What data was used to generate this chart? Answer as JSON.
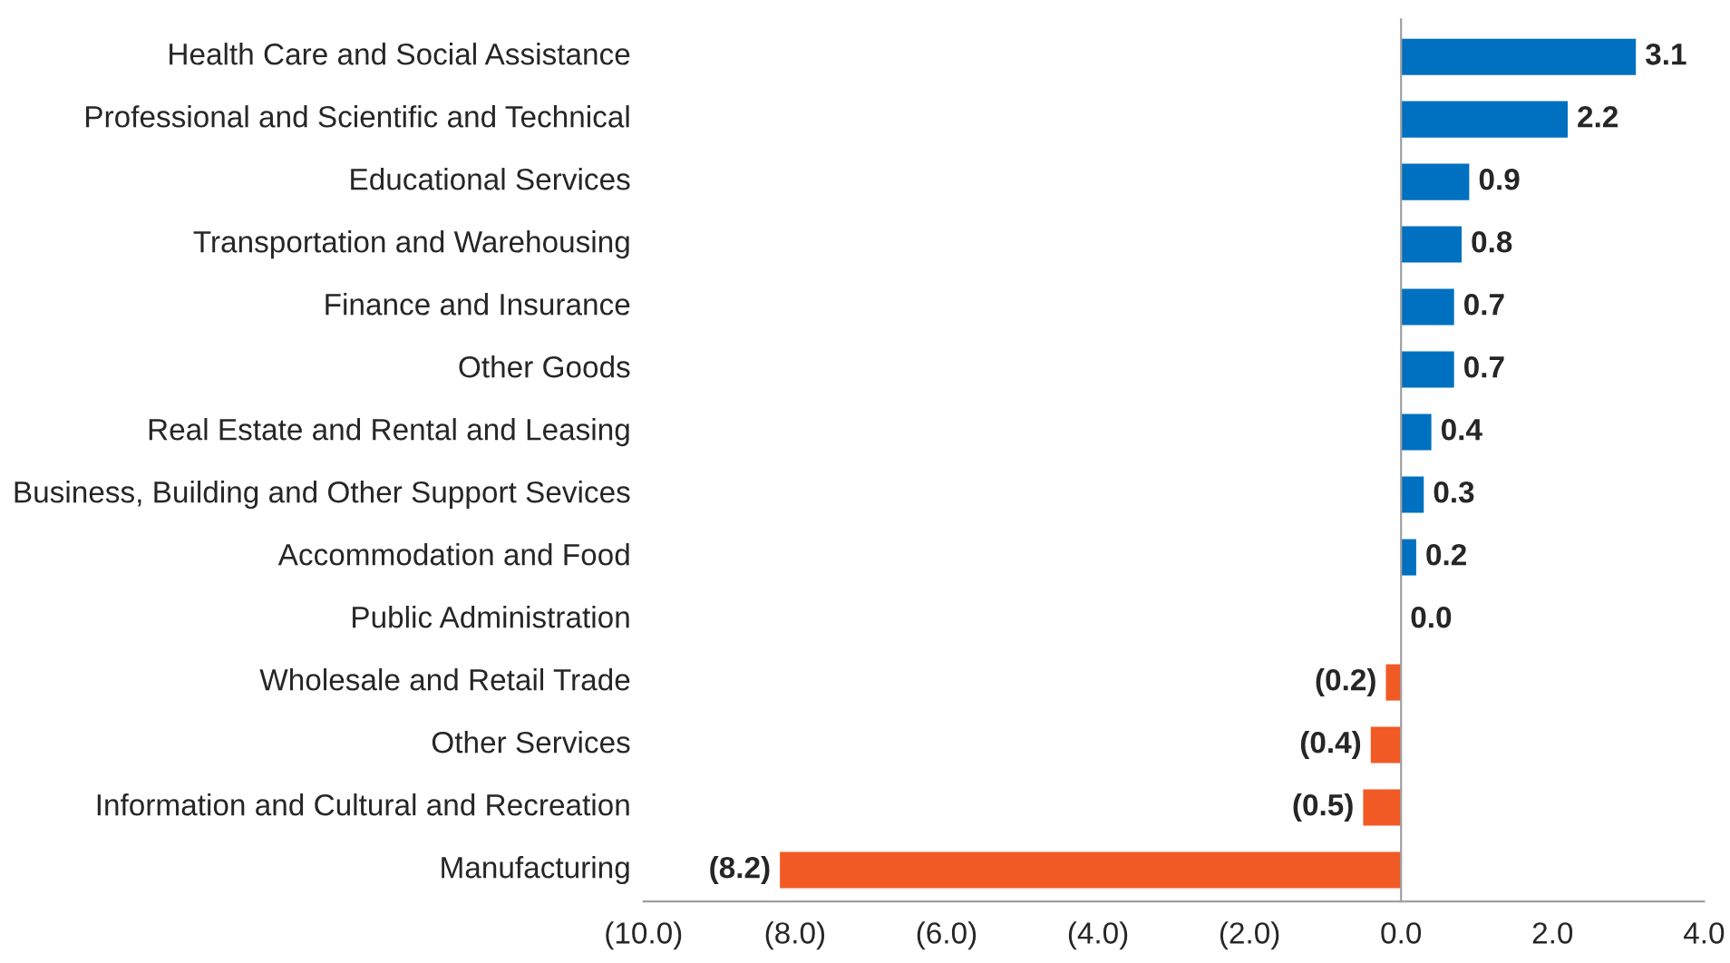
{
  "chart_data": {
    "type": "bar",
    "orientation": "horizontal",
    "categories": [
      "Health Care and Social Assistance",
      "Professional and Scientific and Technical",
      "Educational Services",
      "Transportation and Warehousing",
      "Finance and Insurance",
      "Other Goods",
      "Real Estate and Rental and Leasing",
      "Business, Building and Other Support Sevices",
      "Accommodation and Food",
      "Public Administration",
      "Wholesale and Retail Trade",
      "Other Services",
      "Information and Cultural and Recreation",
      "Manufacturing"
    ],
    "values": [
      3.1,
      2.2,
      0.9,
      0.8,
      0.7,
      0.7,
      0.4,
      0.3,
      0.2,
      0.0,
      -0.2,
      -0.4,
      -0.5,
      -8.2
    ],
    "colors": [
      "#0070c0",
      "#0070c0",
      "#0070c0",
      "#0070c0",
      "#0070c0",
      "#0070c0",
      "#0070c0",
      "#0070c0",
      "#0070c0",
      "#0070c0",
      "#f15a24",
      "#f15a24",
      "#f15a24",
      "#f15a24"
    ],
    "value_labels": [
      "3.1",
      "2.2",
      "0.9",
      "0.8",
      "0.7",
      "0.7",
      "0.4",
      "0.3",
      "0.2",
      "0.0",
      "(0.2)",
      "(0.4)",
      "(0.5)",
      "(8.2)"
    ],
    "xlim": [
      -10,
      4
    ],
    "xticks": [
      {
        "value": -10,
        "label": "(10.0)"
      },
      {
        "value": -8,
        "label": "(8.0)"
      },
      {
        "value": -6,
        "label": "(6.0)"
      },
      {
        "value": -4,
        "label": "(4.0)"
      },
      {
        "value": -2,
        "label": "(2.0)"
      },
      {
        "value": 0,
        "label": "0.0"
      },
      {
        "value": 2,
        "label": "2.0"
      },
      {
        "value": 4,
        "label": "4.0"
      }
    ],
    "legend": false
  }
}
